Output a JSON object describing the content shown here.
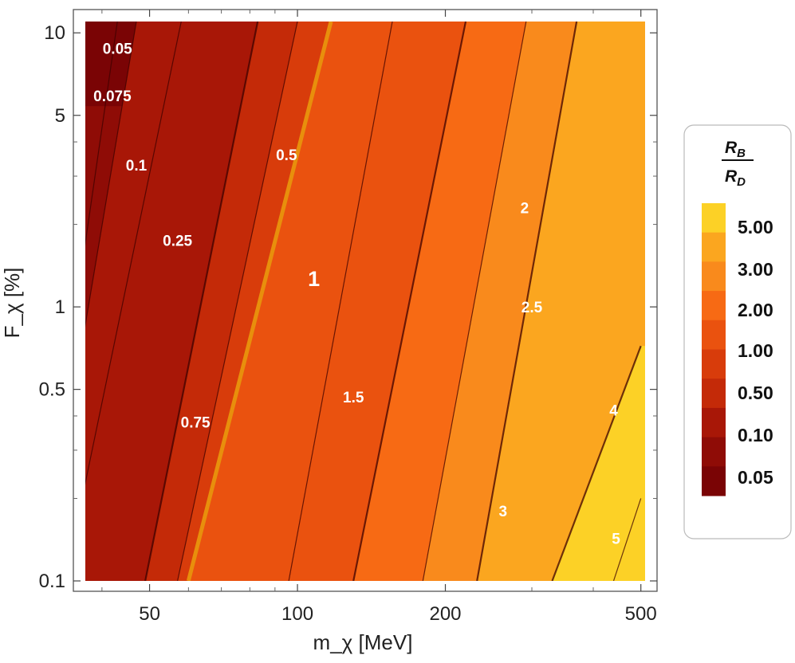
{
  "chart_data": {
    "type": "contour",
    "xlabel": "m_χ [MeV]",
    "ylabel": "F_χ [%]",
    "x_scale": "log",
    "y_scale": "log",
    "xlim": [
      37,
      520
    ],
    "ylim": [
      0.09,
      11.5
    ],
    "xticks": [
      {
        "value": 50,
        "label": "50"
      },
      {
        "value": 100,
        "label": "100"
      },
      {
        "value": 200,
        "label": "200"
      },
      {
        "value": 500,
        "label": "500"
      }
    ],
    "yticks": [
      {
        "value": 0.1,
        "label": "0.1"
      },
      {
        "value": 0.5,
        "label": "0.5"
      },
      {
        "value": 1,
        "label": "1"
      },
      {
        "value": 5,
        "label": "5"
      },
      {
        "value": 10,
        "label": "10"
      }
    ],
    "colorbar": {
      "title_num": "R",
      "title_num_sub": "B",
      "title_den": "R",
      "title_den_sub": "D",
      "labels": [
        "5.00",
        "3.00",
        "2.00",
        "1.00",
        "0.50",
        "0.10",
        "0.05"
      ],
      "colors_top_to_bottom": [
        "#fcd126",
        "#fba61f",
        "#f98a1c",
        "#f76a14",
        "#ea520f",
        "#d83c0b",
        "#c42a08",
        "#a81707",
        "#8f0c06",
        "#7a0405"
      ]
    },
    "contours": [
      {
        "level": 0.05,
        "label": "0.05"
      },
      {
        "level": 0.075,
        "label": "0.075"
      },
      {
        "level": 0.1,
        "label": "0.1"
      },
      {
        "level": 0.25,
        "label": "0.25"
      },
      {
        "level": 0.5,
        "label": "0.5"
      },
      {
        "level": 0.75,
        "label": "0.75"
      },
      {
        "level": 1,
        "label": "1",
        "highlight": true
      },
      {
        "level": 1.5,
        "label": "1.5"
      },
      {
        "level": 2,
        "label": "2"
      },
      {
        "level": 2.5,
        "label": "2.5"
      },
      {
        "level": 3,
        "label": "3"
      },
      {
        "level": 4,
        "label": "4"
      },
      {
        "level": 5,
        "label": "5"
      }
    ],
    "region_colors": [
      "#7a0405",
      "#8f0c06",
      "#a81707",
      "#c42a08",
      "#d83c0b",
      "#ea520f",
      "#f76a14",
      "#f98a1c",
      "#fba61f",
      "#fcd126"
    ]
  }
}
